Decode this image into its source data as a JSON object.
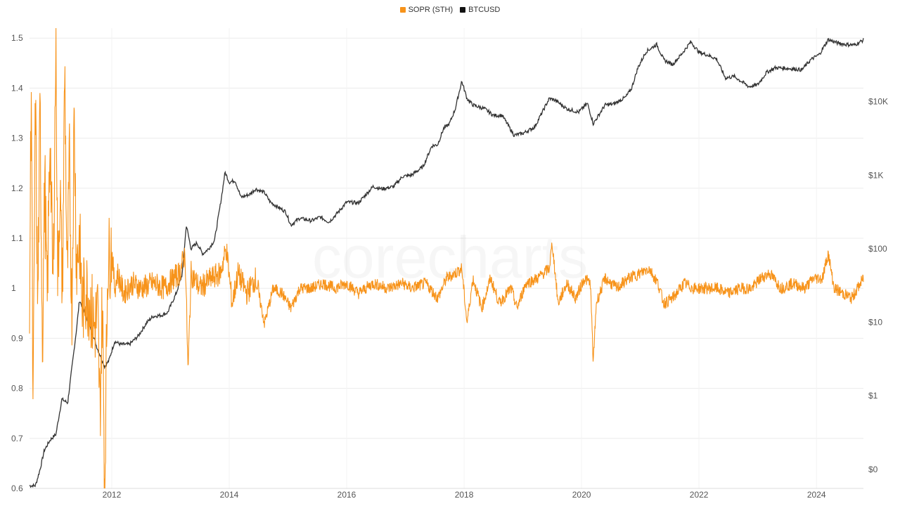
{
  "chart_data": {
    "type": "line",
    "title": "",
    "watermark": "corecharts",
    "legend_position": "top-center",
    "grid": true,
    "series": [
      {
        "name": "SOPR (STH)",
        "axis": "left",
        "color": "#f7931a"
      },
      {
        "name": "BTCUSD",
        "axis": "right",
        "scale": "log",
        "color": "#333333"
      }
    ],
    "x_axis": {
      "range": [
        2010.6,
        2024.8
      ],
      "ticks": [
        2012,
        2014,
        2016,
        2018,
        2020,
        2022,
        2024
      ],
      "tick_labels": [
        "2012",
        "2014",
        "2016",
        "2018",
        "2020",
        "2022",
        "2024"
      ]
    },
    "left_axis": {
      "range": [
        0.6,
        1.52
      ],
      "ticks": [
        0.6,
        0.7,
        0.8,
        0.9,
        1.0,
        1.1,
        1.2,
        1.3,
        1.4,
        1.5
      ],
      "tick_labels": [
        "0.6",
        "0.7",
        "0.8",
        "0.9",
        "1",
        "1.1",
        "1.2",
        "1.3",
        "1.4",
        "1.5"
      ]
    },
    "right_axis": {
      "scale": "log",
      "range": [
        0.055,
        100000
      ],
      "ticks": [
        0.1,
        1,
        10,
        100,
        1000,
        10000
      ],
      "tick_labels": [
        "$0",
        "$1",
        "$10",
        "$100",
        "$1K",
        "$10K"
      ]
    },
    "btc_points": [
      [
        2010.6,
        0.06
      ],
      [
        2010.7,
        0.06
      ],
      [
        2010.78,
        0.1
      ],
      [
        2010.85,
        0.18
      ],
      [
        2010.95,
        0.25
      ],
      [
        2011.05,
        0.3
      ],
      [
        2011.15,
        0.9
      ],
      [
        2011.25,
        0.8
      ],
      [
        2011.4,
        8
      ],
      [
        2011.45,
        20
      ],
      [
        2011.55,
        13
      ],
      [
        2011.65,
        8
      ],
      [
        2011.75,
        4.5
      ],
      [
        2011.88,
        2.5
      ],
      [
        2011.95,
        3
      ],
      [
        2012.05,
        5.5
      ],
      [
        2012.15,
        5
      ],
      [
        2012.3,
        5
      ],
      [
        2012.45,
        6.5
      ],
      [
        2012.6,
        10
      ],
      [
        2012.7,
        12
      ],
      [
        2012.85,
        12.5
      ],
      [
        2012.95,
        13.5
      ],
      [
        2013.1,
        25
      ],
      [
        2013.2,
        45
      ],
      [
        2013.27,
        210
      ],
      [
        2013.35,
        100
      ],
      [
        2013.45,
        120
      ],
      [
        2013.55,
        85
      ],
      [
        2013.65,
        100
      ],
      [
        2013.75,
        130
      ],
      [
        2013.85,
        400
      ],
      [
        2013.93,
        1100
      ],
      [
        2014.0,
        800
      ],
      [
        2014.1,
        850
      ],
      [
        2014.2,
        500
      ],
      [
        2014.35,
        550
      ],
      [
        2014.45,
        650
      ],
      [
        2014.6,
        580
      ],
      [
        2014.7,
        430
      ],
      [
        2014.85,
        360
      ],
      [
        2014.96,
        320
      ],
      [
        2015.05,
        210
      ],
      [
        2015.2,
        260
      ],
      [
        2015.4,
        240
      ],
      [
        2015.55,
        270
      ],
      [
        2015.7,
        230
      ],
      [
        2015.85,
        310
      ],
      [
        2016.0,
        430
      ],
      [
        2016.2,
        420
      ],
      [
        2016.45,
        700
      ],
      [
        2016.6,
        650
      ],
      [
        2016.8,
        700
      ],
      [
        2016.95,
        960
      ],
      [
        2017.1,
        1000
      ],
      [
        2017.3,
        1300
      ],
      [
        2017.45,
        2500
      ],
      [
        2017.55,
        2600
      ],
      [
        2017.65,
        4300
      ],
      [
        2017.75,
        5000
      ],
      [
        2017.85,
        8000
      ],
      [
        2017.96,
        19000
      ],
      [
        2018.05,
        11000
      ],
      [
        2018.15,
        9000
      ],
      [
        2018.35,
        8000
      ],
      [
        2018.5,
        6500
      ],
      [
        2018.65,
        6500
      ],
      [
        2018.85,
        3500
      ],
      [
        2019.0,
        3700
      ],
      [
        2019.2,
        4500
      ],
      [
        2019.45,
        11000
      ],
      [
        2019.55,
        10500
      ],
      [
        2019.75,
        8000
      ],
      [
        2019.95,
        7200
      ],
      [
        2020.1,
        9500
      ],
      [
        2020.2,
        5000
      ],
      [
        2020.4,
        9000
      ],
      [
        2020.55,
        9300
      ],
      [
        2020.75,
        11500
      ],
      [
        2020.85,
        15000
      ],
      [
        2020.96,
        29000
      ],
      [
        2021.1,
        48000
      ],
      [
        2021.28,
        60000
      ],
      [
        2021.4,
        37000
      ],
      [
        2021.55,
        32000
      ],
      [
        2021.7,
        44000
      ],
      [
        2021.86,
        65000
      ],
      [
        2022.0,
        47000
      ],
      [
        2022.15,
        43000
      ],
      [
        2022.3,
        38000
      ],
      [
        2022.45,
        21000
      ],
      [
        2022.6,
        22000
      ],
      [
        2022.85,
        16000
      ],
      [
        2023.0,
        17000
      ],
      [
        2023.15,
        25000
      ],
      [
        2023.3,
        29000
      ],
      [
        2023.6,
        28000
      ],
      [
        2023.75,
        27000
      ],
      [
        2023.9,
        37000
      ],
      [
        2024.05,
        44000
      ],
      [
        2024.2,
        70000
      ],
      [
        2024.35,
        63000
      ],
      [
        2024.5,
        60000
      ],
      [
        2024.65,
        59000
      ],
      [
        2024.8,
        69000
      ]
    ],
    "sopr_points": [
      [
        2010.6,
        0.96
      ],
      [
        2010.63,
        1.44
      ],
      [
        2010.66,
        0.71
      ],
      [
        2010.7,
        1.38
      ],
      [
        2010.74,
        0.95
      ],
      [
        2010.78,
        1.36
      ],
      [
        2010.82,
        0.89
      ],
      [
        2010.86,
        1.23
      ],
      [
        2010.9,
        0.96
      ],
      [
        2010.95,
        1.32
      ],
      [
        2011.0,
        0.98
      ],
      [
        2011.05,
        1.52
      ],
      [
        2011.08,
        1.02
      ],
      [
        2011.12,
        1.2
      ],
      [
        2011.16,
        0.98
      ],
      [
        2011.2,
        1.45
      ],
      [
        2011.24,
        1.0
      ],
      [
        2011.28,
        1.25
      ],
      [
        2011.32,
        0.95
      ],
      [
        2011.36,
        1.35
      ],
      [
        2011.4,
        1.05
      ],
      [
        2011.45,
        1.1
      ],
      [
        2011.5,
        0.96
      ],
      [
        2011.55,
        1.0
      ],
      [
        2011.62,
        0.98
      ],
      [
        2011.7,
        0.92
      ],
      [
        2011.76,
        0.95
      ],
      [
        2011.8,
        0.75
      ],
      [
        2011.84,
        0.98
      ],
      [
        2011.88,
        0.6
      ],
      [
        2011.93,
        1.05
      ],
      [
        2012.0,
        1.08
      ],
      [
        2012.05,
        1.0
      ],
      [
        2012.1,
        1.03
      ],
      [
        2012.2,
        0.99
      ],
      [
        2012.35,
        1.01
      ],
      [
        2012.5,
        1.0
      ],
      [
        2012.7,
        1.01
      ],
      [
        2012.9,
        1.0
      ],
      [
        2013.05,
        1.02
      ],
      [
        2013.15,
        1.03
      ],
      [
        2013.25,
        1.07
      ],
      [
        2013.3,
        0.83
      ],
      [
        2013.35,
        1.03
      ],
      [
        2013.5,
        1.0
      ],
      [
        2013.7,
        1.02
      ],
      [
        2013.85,
        1.03
      ],
      [
        2013.95,
        1.08
      ],
      [
        2014.05,
        0.97
      ],
      [
        2014.15,
        1.03
      ],
      [
        2014.3,
        0.99
      ],
      [
        2014.45,
        1.02
      ],
      [
        2014.6,
        0.93
      ],
      [
        2014.75,
        1.0
      ],
      [
        2014.9,
        0.99
      ],
      [
        2015.05,
        0.96
      ],
      [
        2015.2,
        1.0
      ],
      [
        2015.4,
        1.0
      ],
      [
        2015.6,
        1.01
      ],
      [
        2015.8,
        1.0
      ],
      [
        2016.0,
        1.01
      ],
      [
        2016.2,
        0.99
      ],
      [
        2016.45,
        1.01
      ],
      [
        2016.7,
        1.0
      ],
      [
        2016.95,
        1.01
      ],
      [
        2017.1,
        1.0
      ],
      [
        2017.35,
        1.01
      ],
      [
        2017.55,
        0.98
      ],
      [
        2017.7,
        1.02
      ],
      [
        2017.85,
        1.03
      ],
      [
        2017.96,
        1.04
      ],
      [
        2018.05,
        0.93
      ],
      [
        2018.15,
        1.02
      ],
      [
        2018.3,
        0.96
      ],
      [
        2018.45,
        1.02
      ],
      [
        2018.6,
        0.97
      ],
      [
        2018.8,
        1.0
      ],
      [
        2018.9,
        0.96
      ],
      [
        2019.05,
        1.01
      ],
      [
        2019.25,
        1.02
      ],
      [
        2019.45,
        1.04
      ],
      [
        2019.5,
        1.09
      ],
      [
        2019.6,
        0.97
      ],
      [
        2019.75,
        1.01
      ],
      [
        2019.9,
        0.98
      ],
      [
        2020.05,
        1.02
      ],
      [
        2020.15,
        1.01
      ],
      [
        2020.2,
        0.85
      ],
      [
        2020.25,
        0.97
      ],
      [
        2020.4,
        1.02
      ],
      [
        2020.6,
        1.0
      ],
      [
        2020.8,
        1.02
      ],
      [
        2021.0,
        1.03
      ],
      [
        2021.15,
        1.04
      ],
      [
        2021.3,
        1.01
      ],
      [
        2021.4,
        0.97
      ],
      [
        2021.55,
        0.98
      ],
      [
        2021.75,
        1.01
      ],
      [
        2021.9,
        1.0
      ],
      [
        2022.1,
        1.0
      ],
      [
        2022.3,
        1.0
      ],
      [
        2022.5,
        0.99
      ],
      [
        2022.7,
        1.0
      ],
      [
        2022.9,
        1.0
      ],
      [
        2023.05,
        1.02
      ],
      [
        2023.2,
        1.03
      ],
      [
        2023.4,
        1.0
      ],
      [
        2023.6,
        1.01
      ],
      [
        2023.8,
        1.0
      ],
      [
        2023.95,
        1.02
      ],
      [
        2024.1,
        1.02
      ],
      [
        2024.2,
        1.07
      ],
      [
        2024.3,
        1.0
      ],
      [
        2024.45,
        0.99
      ],
      [
        2024.6,
        0.98
      ],
      [
        2024.75,
        1.01
      ],
      [
        2024.8,
        1.02
      ]
    ]
  }
}
